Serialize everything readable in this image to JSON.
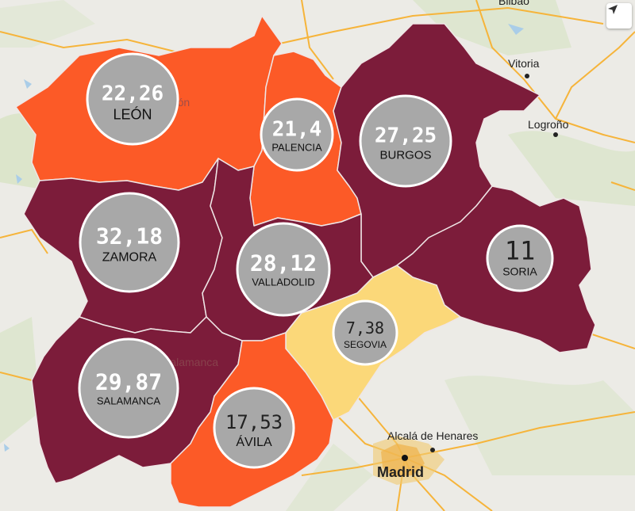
{
  "provinces": [
    {
      "id": "leon",
      "name": "LEÓN",
      "value": "22,26",
      "color": "#fc5a27"
    },
    {
      "id": "palencia",
      "name": "PALENCIA",
      "value": "21,4",
      "color": "#fc5a27"
    },
    {
      "id": "burgos",
      "name": "BURGOS",
      "value": "27,25",
      "color": "#7c1c3a"
    },
    {
      "id": "zamora",
      "name": "ZAMORA",
      "value": "32,18",
      "color": "#7c1c3a"
    },
    {
      "id": "valladolid",
      "name": "VALLADOLID",
      "value": "28,12",
      "color": "#7c1c3a"
    },
    {
      "id": "soria",
      "name": "SORIA",
      "value": "11",
      "color": "#7c1c3a"
    },
    {
      "id": "segovia",
      "name": "SEGOVIA",
      "value": "7,38",
      "color": "#fbd879"
    },
    {
      "id": "salamanca",
      "name": "SALAMANCA",
      "value": "29,87",
      "color": "#7c1c3a"
    },
    {
      "id": "avila",
      "name": "ÁVILA",
      "value": "17,53",
      "color": "#fc5a27"
    }
  ],
  "cities": {
    "vitoria": "Vitoria",
    "logrono": "Logroño",
    "alcala": "Alcalá de Henares",
    "madrid": "Madrid",
    "leon_base": "León",
    "salamanca_base": "Salamanca",
    "bilbao_partial": "Bilbao"
  },
  "colors": {
    "high": "#7c1c3a",
    "medium": "#fc5a27",
    "low": "#fbd879",
    "bubble": "#a8a8a8",
    "road": "#f6b43a",
    "basemap": "#ecebe6"
  },
  "icons": {
    "compass": "location-arrow-icon"
  }
}
